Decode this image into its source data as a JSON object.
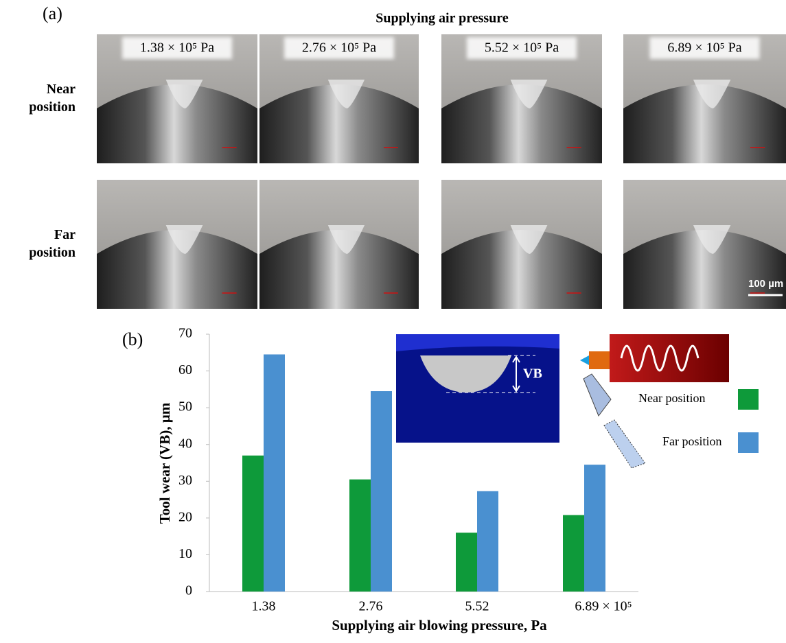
{
  "panel_a": {
    "label": "(a)",
    "title": "Supplying air pressure",
    "columns": [
      "1.38 × 10⁵ Pa",
      "2.76 × 10⁵ Pa",
      "5.52 × 10⁵ Pa",
      "6.89 × 10⁵ Pa"
    ],
    "rows": [
      "Near position",
      "Far position"
    ],
    "scale_bar": "100 µm"
  },
  "chart_data": {
    "type": "bar",
    "panel_label": "(b)",
    "x_label": "Supplying air blowing pressure, Pa",
    "y_label": "Tool wear (VB), µm",
    "categories": [
      "1.38",
      "2.76",
      "5.52",
      "6.89 × 10⁵"
    ],
    "series": [
      {
        "name": "Near position",
        "color": "#0e9a3a",
        "values": [
          37,
          30.5,
          16,
          20.8
        ]
      },
      {
        "name": "Far position",
        "color": "#4a90d0",
        "values": [
          64.5,
          54.5,
          27.3,
          34.5
        ]
      }
    ],
    "ylim": [
      0,
      70
    ],
    "yticks": [
      0,
      10,
      20,
      30,
      40,
      50,
      60,
      70
    ],
    "inset_label": "VB"
  }
}
